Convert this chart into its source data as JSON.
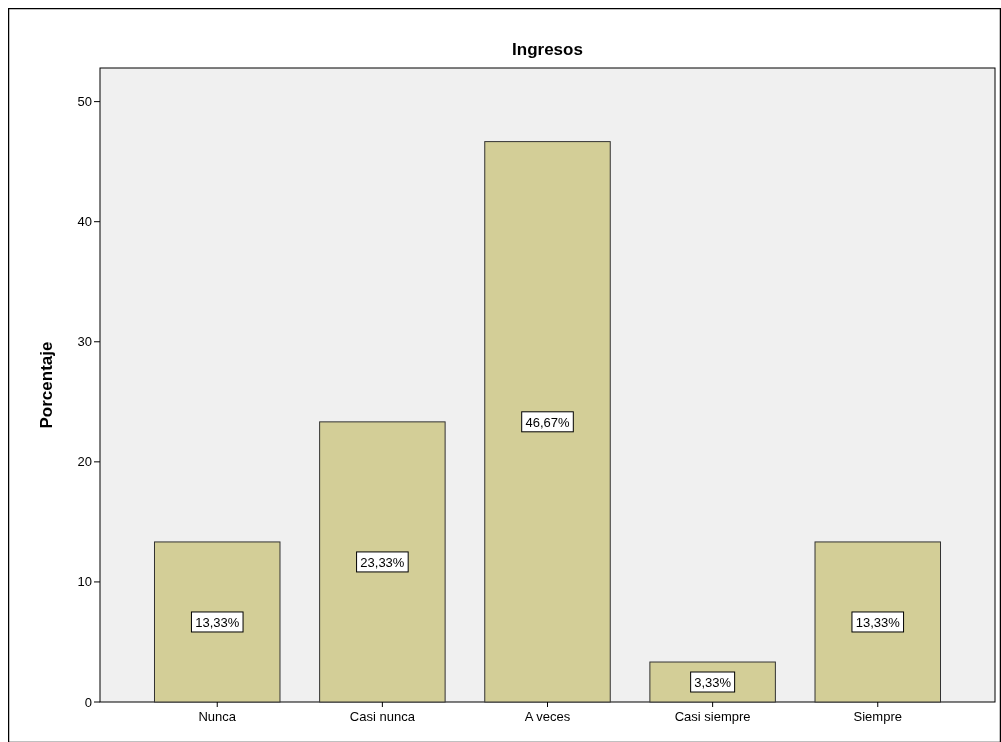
{
  "chart_data": {
    "type": "bar",
    "title": "Ingresos",
    "ylabel": "Porcentaje",
    "categories": [
      "Nunca",
      "Casi nunca",
      "A veces",
      "Casi siempre",
      "Siempre"
    ],
    "values": [
      13.33,
      23.33,
      46.67,
      3.33,
      13.33
    ],
    "value_labels": [
      "13,33%",
      "23,33%",
      "46,67%",
      "3,33%",
      "13,33%"
    ],
    "color": "#d3ce97",
    "ylim": [
      0,
      52.8
    ],
    "yticks": [
      0,
      10,
      20,
      30,
      40,
      50
    ],
    "grid": false
  }
}
